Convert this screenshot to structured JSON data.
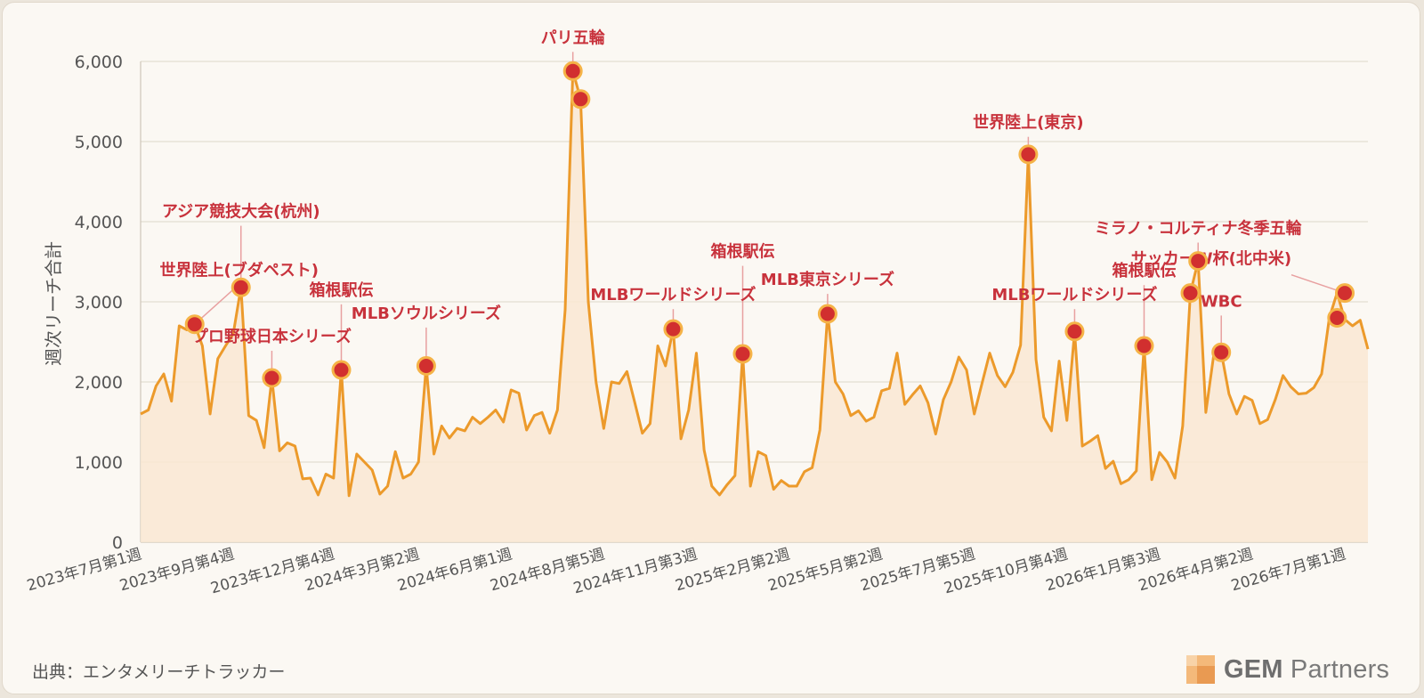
{
  "chart_data": {
    "type": "area",
    "title": "",
    "ylabel": "週次リーチ合計",
    "xlabel": "",
    "ylim": [
      0,
      6000
    ],
    "yticks": [
      0,
      1000,
      2000,
      3000,
      4000,
      5000,
      6000
    ],
    "ytick_labels": [
      "0",
      "1,000",
      "2,000",
      "3,000",
      "4,000",
      "5,000",
      "6,000"
    ],
    "grid": true,
    "line_color": "#ec9a2b",
    "fill_color": "#f9e8d2",
    "marker_color": "#d12f2f",
    "annotation_color": "#c8323c",
    "x_labels": [
      {
        "index": 0,
        "label": "2023年7月第1週"
      },
      {
        "index": 12,
        "label": "2023年9月第4週"
      },
      {
        "index": 25,
        "label": "2023年12月第4週"
      },
      {
        "index": 36,
        "label": "2024年3月第2週"
      },
      {
        "index": 48,
        "label": "2024年6月第1週"
      },
      {
        "index": 60,
        "label": "2024年8月第5週"
      },
      {
        "index": 72,
        "label": "2024年11月第3週"
      },
      {
        "index": 84,
        "label": "2025年2月第2週"
      },
      {
        "index": 96,
        "label": "2025年5月第2週"
      },
      {
        "index": 108,
        "label": "2025年7月第5週"
      },
      {
        "index": 120,
        "label": "2025年10月第4週"
      },
      {
        "index": 132,
        "label": "2026年1月第3週"
      },
      {
        "index": 144,
        "label": "2026年4月第2週"
      },
      {
        "index": 156,
        "label": "2026年7月第1週"
      }
    ],
    "values": [
      1600,
      1650,
      1950,
      2100,
      1760,
      2700,
      2650,
      2720,
      2450,
      1600,
      2290,
      2450,
      2600,
      3180,
      1580,
      1520,
      1180,
      2050,
      1140,
      1240,
      1200,
      790,
      800,
      590,
      850,
      800,
      2150,
      580,
      1100,
      1000,
      900,
      600,
      700,
      1130,
      800,
      850,
      1000,
      2200,
      1100,
      1450,
      1300,
      1420,
      1390,
      1560,
      1480,
      1560,
      1650,
      1500,
      1900,
      1860,
      1400,
      1580,
      1620,
      1360,
      1650,
      2900,
      5880,
      5530,
      3000,
      2000,
      1420,
      2000,
      1980,
      2130,
      1750,
      1360,
      1480,
      2450,
      2200,
      2660,
      1290,
      1650,
      2360,
      1150,
      700,
      590,
      720,
      830,
      2350,
      700,
      1130,
      1080,
      660,
      770,
      700,
      700,
      880,
      930,
      1400,
      2850,
      2000,
      1850,
      1580,
      1640,
      1510,
      1560,
      1890,
      1920,
      2360,
      1720,
      1840,
      1950,
      1740,
      1350,
      1780,
      2000,
      2310,
      2150,
      1600,
      1980,
      2360,
      2080,
      1940,
      2120,
      2460,
      4840,
      2280,
      1560,
      1390,
      2260,
      1520,
      2630,
      1200,
      1260,
      1330,
      920,
      1010,
      730,
      780,
      890,
      2450,
      780,
      1120,
      1000,
      800,
      1450,
      3110,
      3510,
      1620,
      2320,
      2370,
      1850,
      1600,
      1820,
      1770,
      1480,
      1530,
      1780,
      2080,
      1940,
      1850,
      1860,
      1930,
      2100,
      2800,
      3110,
      2780,
      2700,
      2770,
      2410
    ],
    "markers": [
      {
        "index": 7,
        "value": 2720
      },
      {
        "index": 13,
        "value": 3180
      },
      {
        "index": 17,
        "value": 2050
      },
      {
        "index": 26,
        "value": 2150
      },
      {
        "index": 37,
        "value": 2200
      },
      {
        "index": 56,
        "value": 5880
      },
      {
        "index": 57,
        "value": 5530
      },
      {
        "index": 69,
        "value": 2660
      },
      {
        "index": 78,
        "value": 2350
      },
      {
        "index": 89,
        "value": 2850
      },
      {
        "index": 115,
        "value": 4840
      },
      {
        "index": 121,
        "value": 2630
      },
      {
        "index": 130,
        "value": 2450
      },
      {
        "index": 136,
        "value": 3110
      },
      {
        "index": 137,
        "value": 3510
      },
      {
        "index": 140,
        "value": 2370
      },
      {
        "index": 155,
        "value": 2800
      },
      {
        "index": 156,
        "value": 3110
      }
    ],
    "annotations": [
      {
        "label": "世界陸上(ブダペスト)",
        "index": 7,
        "value": 2720,
        "anchor": "label-center-x",
        "text_value": 3330
      },
      {
        "label": "アジア競技大会(杭州)",
        "index": 13,
        "value": 3180,
        "anchor": "marker-center",
        "text_value": 4060
      },
      {
        "label": "プロ野球日本シリーズ",
        "index": 17,
        "value": 2050,
        "anchor": "marker-center",
        "text_value": 2500
      },
      {
        "label": "箱根駅伝",
        "index": 26,
        "value": 2150,
        "anchor": "marker-center",
        "text_value": 3080
      },
      {
        "label": "MLBソウルシリーズ",
        "index": 37,
        "value": 2200,
        "anchor": "marker-center",
        "text_value": 2790
      },
      {
        "label": "パリ五輪",
        "index": 56,
        "value": 5880,
        "anchor": "marker-center",
        "text_value": 6230
      },
      {
        "label": "MLBワールドシリーズ",
        "index": 69,
        "value": 2660,
        "anchor": "marker-center",
        "text_value": 3020
      },
      {
        "label": "箱根駅伝",
        "index": 78,
        "value": 2350,
        "anchor": "marker-center",
        "text_value": 3560
      },
      {
        "label": "MLB東京シリーズ",
        "index": 89,
        "value": 2850,
        "anchor": "marker-center",
        "text_value": 3210
      },
      {
        "label": "世界陸上(東京)",
        "index": 115,
        "value": 4840,
        "anchor": "marker-center",
        "text_value": 5170
      },
      {
        "label": "MLBワールドシリーズ",
        "index": 121,
        "value": 2630,
        "anchor": "marker-center",
        "text_value": 3020
      },
      {
        "label": "箱根駅伝",
        "index": 130,
        "value": 2450,
        "anchor": "marker-center",
        "text_value": 3320
      },
      {
        "label": "ミラノ・コルティナ冬季五輪",
        "index": 137,
        "value": 3510,
        "anchor": "marker-center",
        "text_value": 3850
      },
      {
        "label": "WBC",
        "index": 140,
        "value": 2370,
        "anchor": "marker-center",
        "text_value": 2940
      },
      {
        "label": "サッカーW杯(北中米)",
        "index": 156,
        "value": 3110,
        "anchor": "label-left",
        "text_value": 3470
      }
    ]
  },
  "footer": {
    "source": "出典：エンタメリーチトラッカー",
    "logo_bold": "GEM",
    "logo_light": " Partners"
  }
}
